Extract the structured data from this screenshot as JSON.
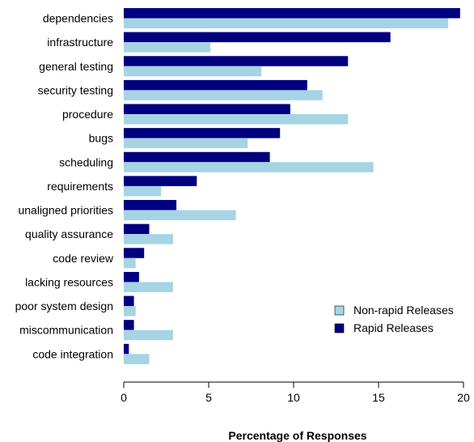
{
  "chart_data": {
    "type": "bar",
    "orientation": "horizontal",
    "categories": [
      "dependencies",
      "infrastructure",
      "general testing",
      "security testing",
      "procedure",
      "bugs",
      "scheduling",
      "requirements",
      "unaligned priorities",
      "quality assurance",
      "code review",
      "lacking resources",
      "poor system design",
      "miscommunication",
      "code integration"
    ],
    "series": [
      {
        "name": "Rapid Releases",
        "color": "#000080",
        "values": [
          19.8,
          15.7,
          13.2,
          10.8,
          9.8,
          9.2,
          8.6,
          4.3,
          3.1,
          1.5,
          1.2,
          0.9,
          0.6,
          0.6,
          0.3
        ]
      },
      {
        "name": "Non-rapid Releases",
        "color": "#a6d4e4",
        "values": [
          19.1,
          5.1,
          8.1,
          11.7,
          13.2,
          7.3,
          14.7,
          2.2,
          6.6,
          2.9,
          0.7,
          2.9,
          0.7,
          2.9,
          1.5
        ]
      }
    ],
    "legend_order": [
      "Non-rapid Releases",
      "Rapid Releases"
    ],
    "xlabel": "Percentage of Responses",
    "xlim": [
      0,
      20
    ],
    "xticks": [
      0,
      5,
      10,
      15,
      20
    ],
    "legend_position": "bottom-right",
    "grid": false
  }
}
